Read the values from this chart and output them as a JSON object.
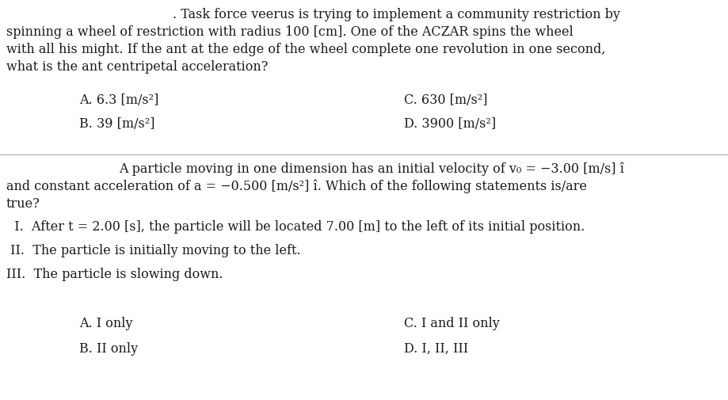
{
  "bg_color": "#ffffff",
  "text_color": "#1a1a1a",
  "fig_width": 9.2,
  "fig_height": 5.05,
  "dpi": 100,
  "q1_line1": ". Task force veerus is trying to implement a community restriction by",
  "q1_line2": "spinning a wheel of restriction with radius 100 [cm]. One of the ACZAR spins the wheel",
  "q1_line3": "with all his might. If the ant at the edge of the wheel complete one revolution in one second,",
  "q1_line4": "what is the ant centripetal acceleration?",
  "q1_A": "A. 6.3 [m/s²]",
  "q1_B": "B. 39 [m/s²]",
  "q1_C": "C. 630 [m/s²]",
  "q1_D": "D. 3900 [m/s²]",
  "q2_line1": "A particle moving in one dimension has an initial velocity of v₀ = −3.00 [m/s] î",
  "q2_line2": "and constant acceleration of a = −0.500 [m/s²] î. Which of the following statements is/are",
  "q2_line3": "true?",
  "q2_I": "  I.  After t = 2.00 [s], the particle will be located 7.00 [m] to the left of its initial position.",
  "q2_II": " II.  The particle is initially moving to the left.",
  "q2_III": "III.  The particle is slowing down.",
  "q2_A": "A. I only",
  "q2_B": "B. II only",
  "q2_C": "C. I and II only",
  "q2_D": "D. I, II, III",
  "font_size_body": 11.5,
  "font_size_choices": 11.5
}
